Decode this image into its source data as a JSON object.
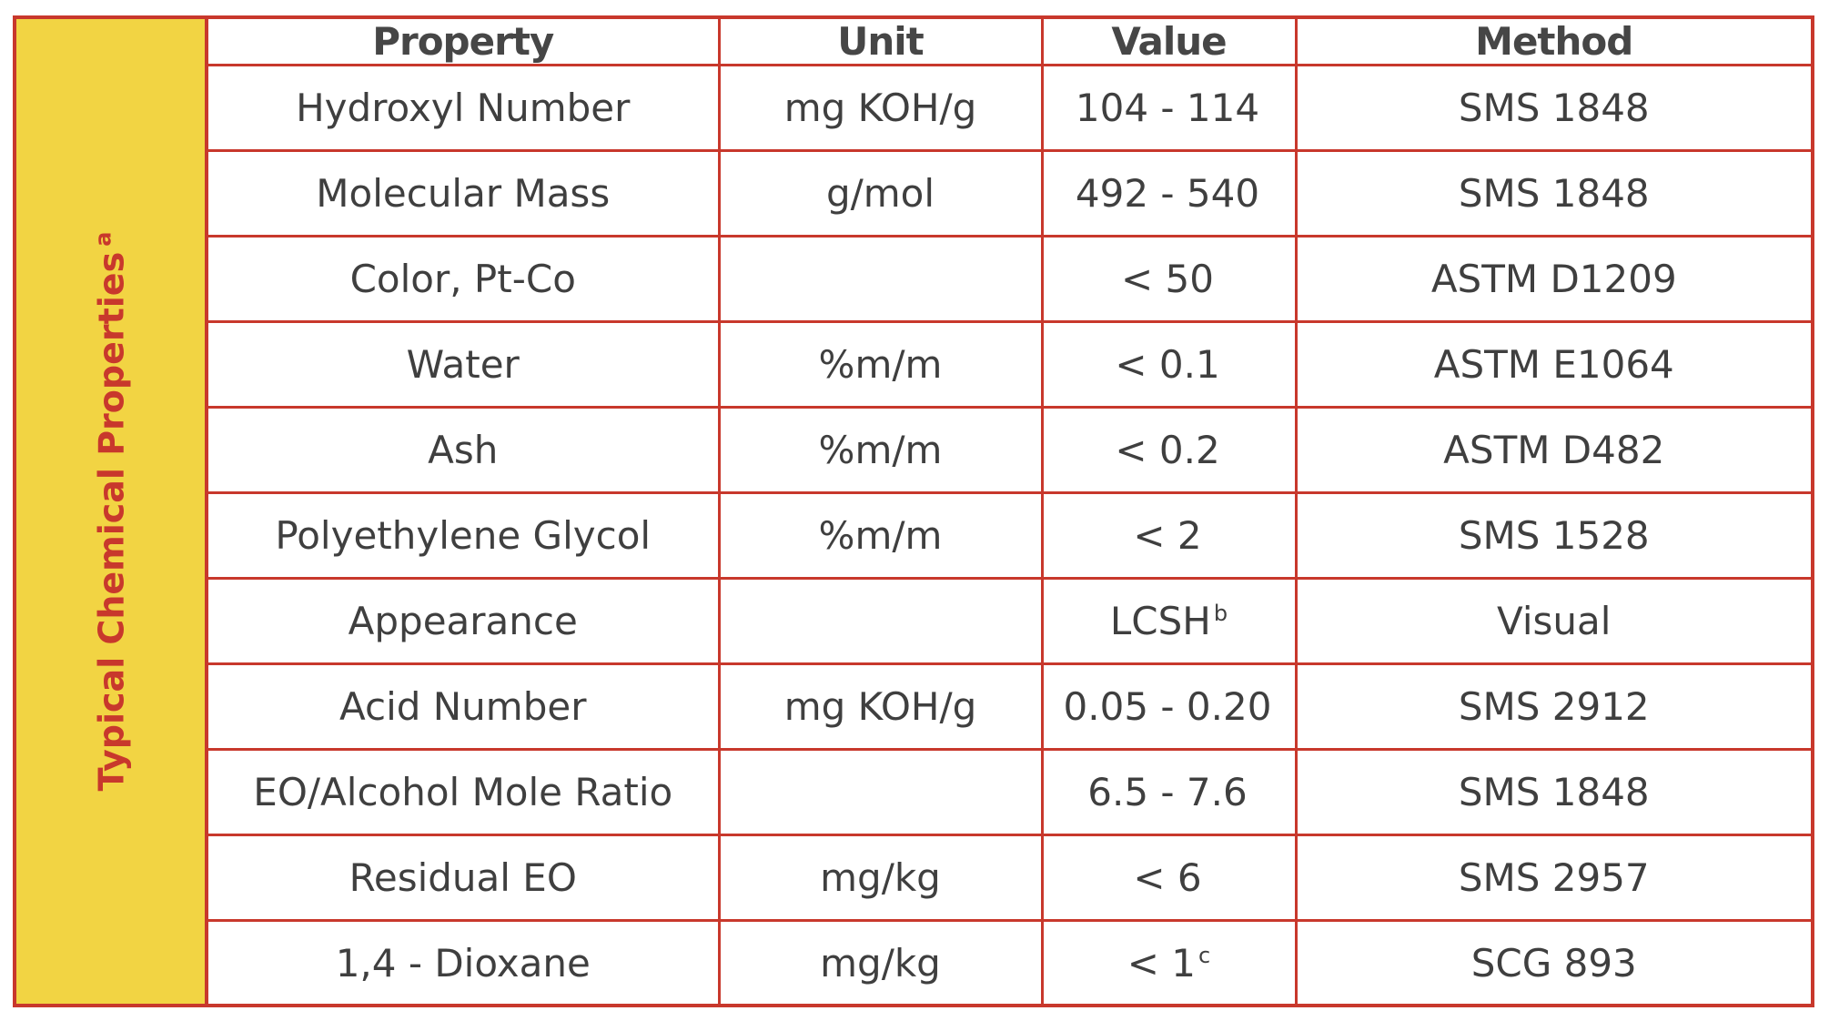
{
  "side_label": {
    "text": "Typical Chemical Properties",
    "footnote_mark": "a"
  },
  "headers": [
    "Property",
    "Unit",
    "Value",
    "Method"
  ],
  "rows": [
    {
      "property": "Hydroxyl Number",
      "unit": "mg KOH/g",
      "value": "104 - 114",
      "value_sup": "",
      "method": "SMS 1848"
    },
    {
      "property": "Molecular Mass",
      "unit": "g/mol",
      "value": "492 - 540",
      "value_sup": "",
      "method": "SMS 1848"
    },
    {
      "property": "Color, Pt-Co",
      "unit": "",
      "value": "< 50",
      "value_sup": "",
      "method": "ASTM D1209"
    },
    {
      "property": "Water",
      "unit": "%m/m",
      "value": "< 0.1",
      "value_sup": "",
      "method": "ASTM E1064"
    },
    {
      "property": "Ash",
      "unit": "%m/m",
      "value": "< 0.2",
      "value_sup": "",
      "method": "ASTM D482"
    },
    {
      "property": "Polyethylene Glycol",
      "unit": "%m/m",
      "value": "< 2",
      "value_sup": "",
      "method": "SMS 1528"
    },
    {
      "property": "Appearance",
      "unit": "",
      "value": "LCSH",
      "value_sup": "b",
      "method": "Visual"
    },
    {
      "property": "Acid Number",
      "unit": "mg KOH/g",
      "value": "0.05 - 0.20",
      "value_sup": "",
      "method": "SMS 2912"
    },
    {
      "property": "EO/Alcohol Mole Ratio",
      "unit": "",
      "value": "6.5 - 7.6",
      "value_sup": "",
      "method": "SMS 1848"
    },
    {
      "property": "Residual EO",
      "unit": "mg/kg",
      "value": "< 6",
      "value_sup": "",
      "method": "SMS 2957"
    },
    {
      "property": "1,4 - Dioxane",
      "unit": "mg/kg",
      "value": "< 1",
      "value_sup": "c",
      "method": "SCG 893"
    }
  ],
  "colors": {
    "border": "#c8382c",
    "side_background": "#f2d443",
    "side_text": "#c8382c",
    "text": "#3f3f3f"
  }
}
